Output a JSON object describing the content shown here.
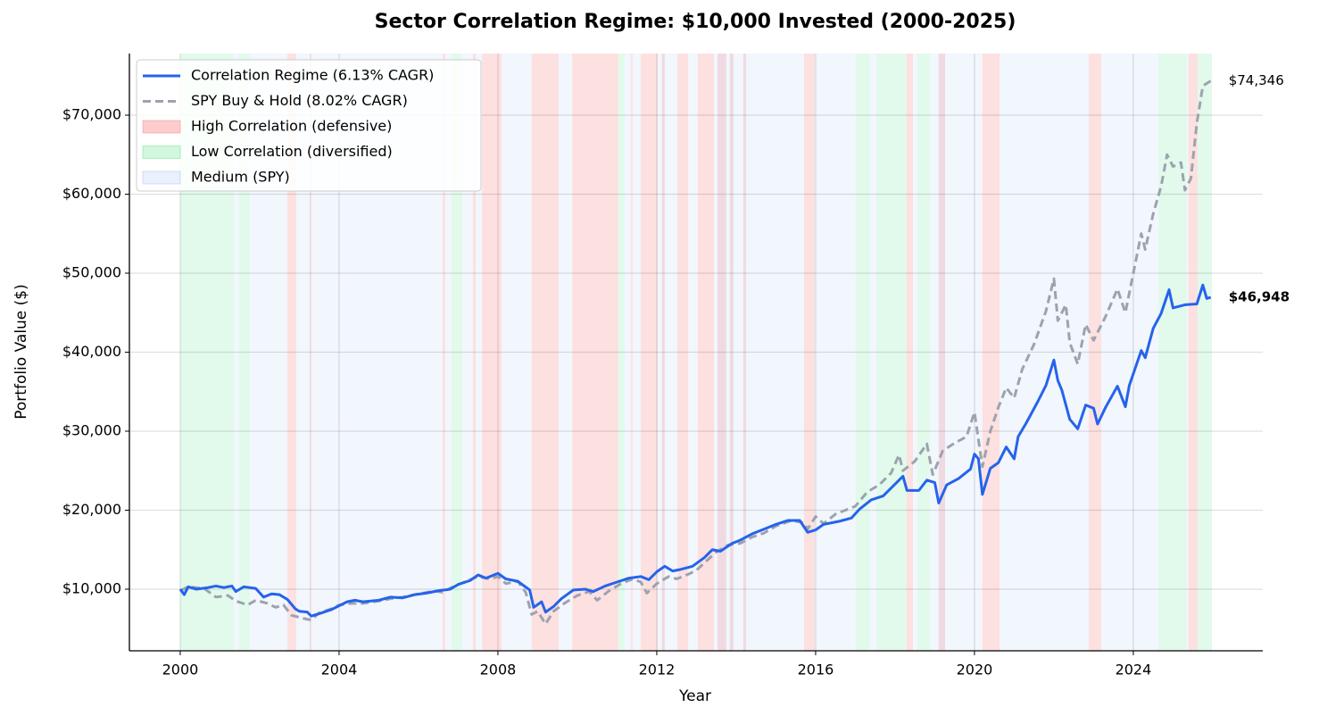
{
  "chart_data": {
    "type": "line",
    "title": "Sector Correlation Regime: $10,000 Invested (2000-2025)",
    "x_label": "Year",
    "y_label": "Portfolio Value ($)",
    "xlim": [
      1998.72,
      2027.26
    ],
    "ylim": [
      2200,
      77800
    ],
    "xticks": [
      2000,
      2004,
      2008,
      2012,
      2016,
      2020,
      2024
    ],
    "yticks": [
      {
        "value": 10000,
        "label": "$10,000"
      },
      {
        "value": 20000,
        "label": "$20,000"
      },
      {
        "value": 30000,
        "label": "$30,000"
      },
      {
        "value": 40000,
        "label": "$40,000"
      },
      {
        "value": 50000,
        "label": "$50,000"
      },
      {
        "value": 60000,
        "label": "$60,000"
      },
      {
        "value": 70000,
        "label": "$70,000"
      }
    ],
    "grid": true,
    "legend_position": "upper left",
    "regimes": [
      {
        "name": "High Correlation (defensive)",
        "color": "#f87171",
        "opacity": 0.22,
        "intervals": [
          [
            2002.7,
            2002.92
          ],
          [
            2003.26,
            2003.3
          ],
          [
            2006.61,
            2006.67
          ],
          [
            2007.37,
            2007.44
          ],
          [
            2007.6,
            2008.09
          ],
          [
            2008.85,
            2009.53
          ],
          [
            2009.87,
            2011.03
          ],
          [
            2011.35,
            2011.39
          ],
          [
            2011.6,
            2012.02
          ],
          [
            2012.13,
            2012.2
          ],
          [
            2012.52,
            2012.79
          ],
          [
            2013.03,
            2013.44
          ],
          [
            2013.53,
            2013.75
          ],
          [
            2013.84,
            2013.93
          ],
          [
            2014.18,
            2014.25
          ],
          [
            2015.71,
            2015.98
          ],
          [
            2018.29,
            2018.45
          ],
          [
            2019.1,
            2019.26
          ],
          [
            2020.2,
            2020.63
          ],
          [
            2022.88,
            2023.19
          ],
          [
            2025.39,
            2025.62
          ]
        ]
      },
      {
        "name": "Low Correlation (diversified)",
        "color": "#4ade80",
        "opacity": 0.16,
        "intervals": [
          [
            2000.0,
            2001.35
          ],
          [
            2001.48,
            2001.75
          ],
          [
            2006.83,
            2007.1
          ],
          [
            2011.03,
            2011.19
          ],
          [
            2017.01,
            2017.37
          ],
          [
            2017.53,
            2018.29
          ],
          [
            2018.56,
            2018.88
          ],
          [
            2024.63,
            2025.35
          ],
          [
            2025.62,
            2025.98
          ]
        ]
      },
      {
        "name": "Medium (SPY)",
        "color": "#93b4f0",
        "opacity": 0.12,
        "intervals": [
          [
            2001.35,
            2001.48
          ],
          [
            2001.75,
            2002.7
          ],
          [
            2002.92,
            2006.61
          ],
          [
            2006.67,
            2006.83
          ],
          [
            2007.1,
            2007.37
          ],
          [
            2007.44,
            2007.6
          ],
          [
            2008.09,
            2008.85
          ],
          [
            2009.53,
            2009.87
          ],
          [
            2011.19,
            2011.35
          ],
          [
            2011.39,
            2011.6
          ],
          [
            2012.02,
            2012.52
          ],
          [
            2012.79,
            2013.03
          ],
          [
            2013.44,
            2015.71
          ],
          [
            2015.98,
            2017.01
          ],
          [
            2017.37,
            2017.53
          ],
          [
            2018.45,
            2018.56
          ],
          [
            2018.88,
            2020.2
          ],
          [
            2020.63,
            2022.88
          ],
          [
            2023.19,
            2024.63
          ],
          [
            2025.35,
            2025.39
          ]
        ]
      }
    ],
    "series": [
      {
        "name": "Correlation Regime (6.13% CAGR)",
        "color": "#2563eb",
        "dash": false,
        "end_label": "$46,948",
        "x": [
          2000.0,
          2000.1,
          2000.2,
          2000.4,
          2000.7,
          2000.9,
          2001.1,
          2001.3,
          2001.4,
          2001.6,
          2001.9,
          2002.1,
          2002.3,
          2002.5,
          2002.7,
          2002.9,
          2003.0,
          2003.2,
          2003.3,
          2003.5,
          2003.8,
          2004.0,
          2004.2,
          2004.4,
          2004.6,
          2005.0,
          2005.3,
          2005.6,
          2005.9,
          2006.2,
          2006.5,
          2006.8,
          2007.0,
          2007.3,
          2007.5,
          2007.7,
          2008.0,
          2008.2,
          2008.5,
          2008.8,
          2008.9,
          2009.1,
          2009.2,
          2009.4,
          2009.6,
          2009.9,
          2010.2,
          2010.4,
          2010.7,
          2011.0,
          2011.3,
          2011.6,
          2011.8,
          2012.0,
          2012.2,
          2012.4,
          2012.6,
          2012.9,
          2013.2,
          2013.4,
          2013.6,
          2013.9,
          2014.1,
          2014.4,
          2014.7,
          2015.0,
          2015.3,
          2015.6,
          2015.8,
          2016.0,
          2016.2,
          2016.6,
          2016.9,
          2017.1,
          2017.4,
          2017.7,
          2018.0,
          2018.2,
          2018.3,
          2018.6,
          2018.8,
          2019.0,
          2019.1,
          2019.3,
          2019.6,
          2019.9,
          2020.0,
          2020.1,
          2020.2,
          2020.4,
          2020.6,
          2020.8,
          2021.0,
          2021.1,
          2021.3,
          2021.6,
          2021.8,
          2022.0,
          2022.1,
          2022.2,
          2022.4,
          2022.6,
          2022.8,
          2023.0,
          2023.1,
          2023.3,
          2023.6,
          2023.8,
          2023.9,
          2024.2,
          2024.3,
          2024.5,
          2024.7,
          2024.9,
          2025.0,
          2025.3,
          2025.6,
          2025.75,
          2025.85,
          2025.95
        ],
        "values": [
          10000,
          9300,
          10300,
          10000,
          10200,
          10400,
          10200,
          10400,
          9700,
          10300,
          10100,
          9000,
          9400,
          9300,
          8700,
          7500,
          7200,
          7100,
          6600,
          6900,
          7400,
          7900,
          8400,
          8600,
          8400,
          8600,
          9000,
          8900,
          9300,
          9500,
          9800,
          10000,
          10600,
          11100,
          11800,
          11400,
          12000,
          11300,
          11000,
          9900,
          7700,
          8400,
          7100,
          7800,
          8800,
          9900,
          10000,
          9700,
          10400,
          10900,
          11400,
          11600,
          11200,
          12200,
          12900,
          12300,
          12500,
          12900,
          14000,
          15000,
          14800,
          15800,
          16200,
          17000,
          17600,
          18200,
          18700,
          18700,
          17200,
          17500,
          18200,
          18600,
          19000,
          20100,
          21300,
          21800,
          23300,
          24300,
          22500,
          22500,
          23800,
          23500,
          20900,
          23200,
          24000,
          25200,
          27100,
          26500,
          22000,
          25300,
          26000,
          28000,
          26500,
          29300,
          31000,
          33800,
          35800,
          39000,
          36400,
          35200,
          31500,
          30300,
          33300,
          32900,
          30900,
          33000,
          35700,
          33100,
          35800,
          40200,
          39300,
          43000,
          44900,
          47900,
          45600,
          46000,
          46100,
          48500,
          46800,
          46948
        ]
      },
      {
        "name": "SPY Buy & Hold (8.02% CAGR)",
        "color": "#9ca3af",
        "dash": true,
        "end_label": "$74,346",
        "x": [
          2000.0,
          2000.2,
          2000.6,
          2000.9,
          2001.2,
          2001.4,
          2001.7,
          2001.9,
          2002.2,
          2002.4,
          2002.6,
          2002.8,
          2003.1,
          2003.3,
          2003.5,
          2003.8,
          2004.0,
          2004.3,
          2004.6,
          2005.0,
          2005.3,
          2005.6,
          2006.0,
          2006.4,
          2006.6,
          2006.9,
          2007.3,
          2007.5,
          2007.8,
          2008.0,
          2008.2,
          2008.5,
          2008.7,
          2008.85,
          2009.0,
          2009.2,
          2009.4,
          2009.7,
          2010.0,
          2010.3,
          2010.5,
          2010.8,
          2011.1,
          2011.4,
          2011.6,
          2011.75,
          2012.0,
          2012.3,
          2012.5,
          2012.8,
          2013.0,
          2013.3,
          2013.5,
          2013.8,
          2014.1,
          2014.4,
          2014.7,
          2015.0,
          2015.4,
          2015.7,
          2015.8,
          2016.0,
          2016.2,
          2016.5,
          2016.8,
          2017.0,
          2017.3,
          2017.6,
          2017.9,
          2018.1,
          2018.2,
          2018.5,
          2018.8,
          2018.95,
          2019.2,
          2019.5,
          2019.8,
          2020.0,
          2020.2,
          2020.4,
          2020.6,
          2020.8,
          2021.0,
          2021.2,
          2021.5,
          2021.8,
          2022.0,
          2022.1,
          2022.3,
          2022.4,
          2022.6,
          2022.8,
          2023.0,
          2023.3,
          2023.6,
          2023.8,
          2024.0,
          2024.2,
          2024.3,
          2024.5,
          2024.7,
          2024.85,
          2025.0,
          2025.2,
          2025.3,
          2025.45,
          2025.6,
          2025.75,
          2025.95
        ],
        "values": [
          9800,
          10300,
          10100,
          9000,
          9200,
          8500,
          8000,
          8600,
          8200,
          7700,
          8000,
          6700,
          6300,
          6100,
          7000,
          7500,
          8000,
          8200,
          8200,
          8500,
          8800,
          9000,
          9400,
          9800,
          9600,
          10400,
          11200,
          11600,
          11300,
          11600,
          10700,
          11000,
          9600,
          6800,
          7200,
          5600,
          7200,
          8300,
          9200,
          9700,
          8600,
          9800,
          10700,
          11300,
          10900,
          9500,
          10700,
          11600,
          11300,
          11900,
          12400,
          13800,
          14700,
          15600,
          15800,
          16600,
          17100,
          18000,
          18700,
          18400,
          17600,
          19200,
          18300,
          19500,
          20100,
          20500,
          22300,
          23200,
          24700,
          27000,
          25000,
          26200,
          28400,
          24500,
          27500,
          28500,
          29300,
          32400,
          25500,
          30000,
          33000,
          35500,
          34200,
          37800,
          41000,
          45200,
          49300,
          44000,
          46000,
          41200,
          38500,
          43500,
          41500,
          44500,
          48000,
          45000,
          50000,
          55000,
          53000,
          57500,
          61000,
          65000,
          63500,
          64000,
          60500,
          62000,
          69000,
          73700,
          74346
        ]
      }
    ]
  }
}
